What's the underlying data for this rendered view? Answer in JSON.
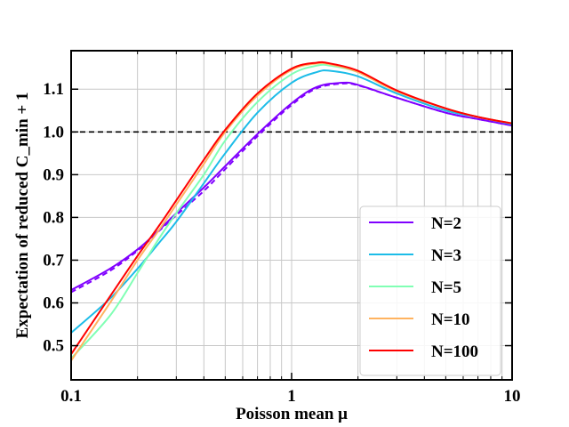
{
  "chart_data": {
    "type": "line",
    "title": "",
    "xlabel": "Poisson mean μ",
    "ylabel": "Expectation of reduced C_min + 1",
    "xscale": "log",
    "xlim": [
      0.1,
      10
    ],
    "ylim": [
      0.42,
      1.19
    ],
    "grid": true,
    "legend_position": "lower-right",
    "xticks": [
      {
        "value": 0.1,
        "label": "0.1"
      },
      {
        "value": 1,
        "label": "1"
      },
      {
        "value": 10,
        "label": "10"
      }
    ],
    "yticks": [
      {
        "value": 0.5,
        "label": "0.5"
      },
      {
        "value": 0.6,
        "label": "0.6"
      },
      {
        "value": 0.7,
        "label": "0.7"
      },
      {
        "value": 0.8,
        "label": "0.8"
      },
      {
        "value": 0.9,
        "label": "0.9"
      },
      {
        "value": 1.0,
        "label": "1.0"
      },
      {
        "value": 1.1,
        "label": "1.1"
      }
    ],
    "reference_line": {
      "y": 1.0,
      "style": "dashed",
      "color": "#000000"
    },
    "series": [
      {
        "name": "N=2",
        "color": "#8000ff",
        "x": [
          0.1,
          0.15,
          0.2,
          0.25,
          0.3,
          0.4,
          0.5,
          0.7,
          1.0,
          1.3,
          1.7,
          2.0,
          3.0,
          5.0,
          7.0,
          10.0
        ],
        "values": [
          0.63,
          0.68,
          0.725,
          0.77,
          0.81,
          0.87,
          0.92,
          0.995,
          1.067,
          1.105,
          1.115,
          1.11,
          1.08,
          1.045,
          1.03,
          1.015
        ],
        "dashed_values": [
          0.625,
          0.675,
          0.722,
          0.768,
          0.805,
          0.862,
          0.913,
          0.99,
          1.063,
          1.102,
          1.113,
          1.109,
          1.08,
          1.045,
          1.03,
          1.015
        ]
      },
      {
        "name": "N=3",
        "color": "#1cbce8",
        "x": [
          0.1,
          0.15,
          0.2,
          0.25,
          0.3,
          0.4,
          0.5,
          0.7,
          1.0,
          1.3,
          1.5,
          2.0,
          3.0,
          5.0,
          7.0,
          10.0
        ],
        "values": [
          0.53,
          0.61,
          0.68,
          0.74,
          0.79,
          0.88,
          0.95,
          1.045,
          1.115,
          1.14,
          1.143,
          1.13,
          1.09,
          1.05,
          1.035,
          1.018
        ]
      },
      {
        "name": "N=5",
        "color": "#80ffb4",
        "x": [
          0.1,
          0.15,
          0.2,
          0.25,
          0.3,
          0.4,
          0.5,
          0.7,
          1.0,
          1.3,
          1.5,
          2.0,
          3.0,
          5.0,
          7.0,
          10.0
        ],
        "values": [
          0.47,
          0.57,
          0.67,
          0.75,
          0.81,
          0.9,
          0.98,
          1.07,
          1.135,
          1.155,
          1.155,
          1.14,
          1.095,
          1.055,
          1.035,
          1.02
        ]
      },
      {
        "name": "N=10",
        "color": "#ffb360",
        "x": [
          0.1,
          0.15,
          0.2,
          0.25,
          0.3,
          0.4,
          0.5,
          0.7,
          1.0,
          1.3,
          1.5,
          2.0,
          3.0,
          5.0,
          7.0,
          10.0
        ],
        "values": [
          0.465,
          0.6,
          0.7,
          0.77,
          0.83,
          0.925,
          1.0,
          1.085,
          1.145,
          1.16,
          1.158,
          1.14,
          1.095,
          1.055,
          1.035,
          1.02
        ]
      },
      {
        "name": "N=100",
        "color": "#ff0000",
        "x": [
          0.1,
          0.15,
          0.2,
          0.25,
          0.3,
          0.4,
          0.5,
          0.7,
          1.0,
          1.3,
          1.5,
          2.0,
          3.0,
          5.0,
          7.0,
          10.0
        ],
        "values": [
          0.48,
          0.615,
          0.71,
          0.78,
          0.84,
          0.935,
          1.005,
          1.09,
          1.148,
          1.162,
          1.16,
          1.143,
          1.097,
          1.055,
          1.035,
          1.02
        ]
      }
    ]
  }
}
